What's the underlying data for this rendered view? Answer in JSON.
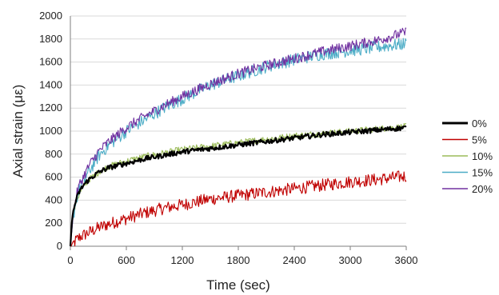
{
  "chart_data": {
    "type": "line",
    "title": "",
    "xlabel": "Time (sec)",
    "ylabel": "Axial strain (με)",
    "xlim": [
      0,
      3600
    ],
    "ylim": [
      0,
      2000
    ],
    "x_ticks": [
      "0",
      "600",
      "1200",
      "1800",
      "2400",
      "3000",
      "3600"
    ],
    "y_ticks": [
      "0",
      "200",
      "400",
      "600",
      "800",
      "1000",
      "1200",
      "1400",
      "1600",
      "1800",
      "2000"
    ],
    "grid": "horizontal",
    "legend_position": "right",
    "series": [
      {
        "name": "0%",
        "color": "#000000",
        "x": [
          0,
          15,
          30,
          60,
          100,
          150,
          200,
          300,
          400,
          600,
          800,
          1000,
          1200,
          1500,
          1800,
          2100,
          2400,
          2700,
          3000,
          3300,
          3600
        ],
        "y": [
          0,
          200,
          300,
          400,
          480,
          540,
          580,
          640,
          680,
          720,
          760,
          790,
          820,
          850,
          880,
          910,
          940,
          970,
          990,
          1010,
          1030
        ]
      },
      {
        "name": "5%",
        "color": "#c00000",
        "x": [
          0,
          30,
          60,
          100,
          200,
          300,
          400,
          600,
          800,
          1000,
          1200,
          1500,
          1800,
          2100,
          2400,
          2700,
          3000,
          3300,
          3600
        ],
        "y": [
          0,
          20,
          50,
          80,
          120,
          160,
          190,
          240,
          290,
          330,
          360,
          410,
          440,
          470,
          500,
          530,
          560,
          580,
          610
        ]
      },
      {
        "name": "10%",
        "color": "#9bbb59",
        "x": [
          0,
          15,
          30,
          60,
          100,
          150,
          200,
          300,
          400,
          600,
          800,
          1000,
          1200,
          1500,
          1800,
          2100,
          2400,
          2700,
          3000,
          3300,
          3600
        ],
        "y": [
          0,
          150,
          260,
          380,
          460,
          530,
          580,
          640,
          690,
          740,
          780,
          810,
          840,
          870,
          900,
          930,
          960,
          980,
          1000,
          1020,
          1040
        ]
      },
      {
        "name": "15%",
        "color": "#4bacc6",
        "x": [
          0,
          30,
          60,
          100,
          200,
          300,
          400,
          600,
          800,
          1000,
          1200,
          1500,
          1800,
          2100,
          2400,
          2700,
          3000,
          3300,
          3600
        ],
        "y": [
          0,
          250,
          400,
          500,
          650,
          780,
          870,
          1000,
          1100,
          1200,
          1280,
          1400,
          1480,
          1560,
          1620,
          1670,
          1700,
          1730,
          1760
        ]
      },
      {
        "name": "20%",
        "color": "#7030a0",
        "x": [
          0,
          30,
          60,
          100,
          200,
          300,
          400,
          600,
          800,
          1000,
          1200,
          1500,
          1800,
          2100,
          2400,
          2700,
          3000,
          3300,
          3600
        ],
        "y": [
          0,
          280,
          430,
          540,
          700,
          820,
          900,
          1030,
          1130,
          1220,
          1300,
          1410,
          1500,
          1570,
          1630,
          1690,
          1740,
          1790,
          1860
        ]
      }
    ]
  }
}
